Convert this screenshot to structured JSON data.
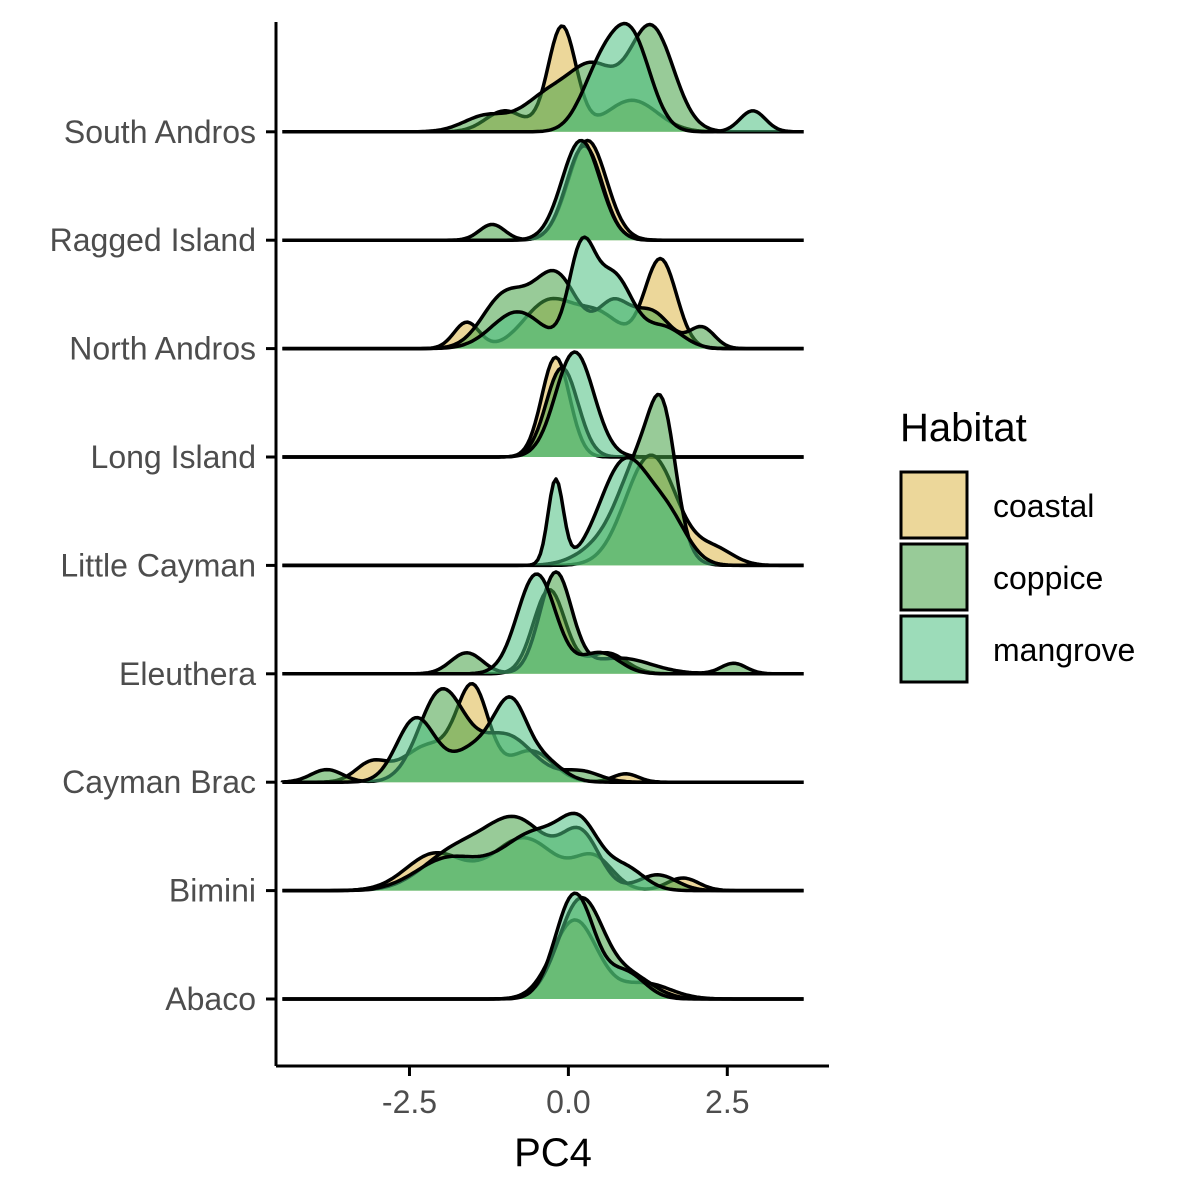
{
  "chart_data": {
    "type": "ridgeline",
    "xlabel": "PC4",
    "ylabel": "",
    "xlim": [
      -4.6,
      4.1
    ],
    "xticks": [
      -2.5,
      0.0,
      2.5
    ],
    "xtick_labels": [
      "-2.5",
      "0.0",
      "2.5"
    ],
    "grid": false,
    "legend": {
      "title": "Habitat",
      "position": "right",
      "entries": [
        "coastal",
        "coppice",
        "mangrove"
      ]
    },
    "colors": {
      "coastal": "#DDB747",
      "coppice": "#43A143",
      "mangrove": "#4BC07F"
    },
    "categories": [
      "Abaco",
      "Bimini",
      "Cayman Brac",
      "Eleuthera",
      "Little Cayman",
      "Long Island",
      "North Andros",
      "Ragged Island",
      "South Andros"
    ],
    "series": [
      {
        "name": "coastal",
        "peaks": {
          "Abaco": [
            [
              0.1,
              0.35,
              0.75
            ],
            [
              1.2,
              0.4,
              0.15
            ]
          ],
          "Bimini": [
            [
              -2.1,
              0.45,
              0.35
            ],
            [
              -0.7,
              0.5,
              0.5
            ],
            [
              0.4,
              0.3,
              0.3
            ],
            [
              1.8,
              0.25,
              0.12
            ]
          ],
          "Cayman Brac": [
            [
              -3.1,
              0.25,
              0.18
            ],
            [
              -1.5,
              0.25,
              0.85
            ],
            [
              -2.2,
              0.4,
              0.35
            ],
            [
              -0.6,
              0.35,
              0.3
            ],
            [
              0.9,
              0.2,
              0.08
            ]
          ],
          "Eleuthera": [
            [
              -0.3,
              0.25,
              0.8
            ],
            [
              0.6,
              0.3,
              0.2
            ]
          ],
          "Little Cayman": [
            [
              1.3,
              0.4,
              1.05
            ],
            [
              2.3,
              0.3,
              0.15
            ]
          ],
          "Long Island": [
            [
              -0.2,
              0.22,
              0.95
            ]
          ],
          "North Andros": [
            [
              -1.6,
              0.2,
              0.25
            ],
            [
              -0.3,
              0.4,
              0.45
            ],
            [
              0.5,
              0.35,
              0.3
            ],
            [
              1.45,
              0.25,
              0.85
            ]
          ],
          "Ragged Island": [
            [
              0.3,
              0.3,
              0.95
            ]
          ],
          "South Andros": [
            [
              -0.1,
              0.22,
              1.0
            ],
            [
              -1.0,
              0.3,
              0.2
            ],
            [
              1.0,
              0.4,
              0.3
            ]
          ]
        }
      },
      {
        "name": "coppice",
        "peaks": {
          "Abaco": [
            [
              0.2,
              0.35,
              0.95
            ],
            [
              1.0,
              0.35,
              0.2
            ]
          ],
          "Bimini": [
            [
              -1.8,
              0.5,
              0.35
            ],
            [
              -0.8,
              0.5,
              0.65
            ],
            [
              0.2,
              0.3,
              0.5
            ],
            [
              1.4,
              0.3,
              0.15
            ]
          ],
          "Cayman Brac": [
            [
              -3.8,
              0.25,
              0.12
            ],
            [
              -2.0,
              0.35,
              0.85
            ],
            [
              -1.0,
              0.45,
              0.45
            ],
            [
              0.2,
              0.3,
              0.1
            ]
          ],
          "Eleuthera": [
            [
              -1.6,
              0.25,
              0.2
            ],
            [
              -0.2,
              0.25,
              0.95
            ],
            [
              0.8,
              0.5,
              0.15
            ],
            [
              2.6,
              0.2,
              0.1
            ]
          ],
          "Little Cayman": [
            [
              0.6,
              0.4,
              0.2
            ],
            [
              1.2,
              0.35,
              1.0
            ],
            [
              1.5,
              0.2,
              0.85
            ]
          ],
          "Long Island": [
            [
              -0.1,
              0.25,
              0.85
            ]
          ],
          "North Andros": [
            [
              -1.0,
              0.35,
              0.5
            ],
            [
              -0.2,
              0.35,
              0.7
            ],
            [
              0.7,
              0.25,
              0.4
            ],
            [
              1.3,
              0.3,
              0.35
            ],
            [
              2.1,
              0.2,
              0.2
            ]
          ],
          "Ragged Island": [
            [
              -1.2,
              0.2,
              0.15
            ],
            [
              0.25,
              0.28,
              0.9
            ]
          ],
          "South Andros": [
            [
              -1.3,
              0.35,
              0.15
            ],
            [
              -0.3,
              0.4,
              0.35
            ],
            [
              0.4,
              0.35,
              0.55
            ],
            [
              1.3,
              0.35,
              1.0
            ]
          ]
        }
      },
      {
        "name": "mangrove",
        "peaks": {
          "Abaco": [
            [
              0.1,
              0.3,
              1.0
            ],
            [
              0.9,
              0.3,
              0.25
            ]
          ],
          "Bimini": [
            [
              -1.9,
              0.5,
              0.3
            ],
            [
              -0.5,
              0.55,
              0.55
            ],
            [
              0.2,
              0.3,
              0.45
            ],
            [
              0.9,
              0.3,
              0.2
            ]
          ],
          "Cayman Brac": [
            [
              -2.4,
              0.3,
              0.6
            ],
            [
              -1.4,
              0.4,
              0.35
            ],
            [
              -0.9,
              0.25,
              0.6
            ],
            [
              -0.4,
              0.3,
              0.2
            ]
          ],
          "Eleuthera": [
            [
              -0.5,
              0.3,
              0.95
            ],
            [
              0.5,
              0.3,
              0.2
            ]
          ],
          "Little Cayman": [
            [
              -0.2,
              0.12,
              0.8
            ],
            [
              0.9,
              0.4,
              1.0
            ],
            [
              1.6,
              0.3,
              0.35
            ]
          ],
          "Long Island": [
            [
              0.1,
              0.3,
              1.0
            ]
          ],
          "North Andros": [
            [
              -0.8,
              0.4,
              0.35
            ],
            [
              0.2,
              0.2,
              0.85
            ],
            [
              0.7,
              0.3,
              0.7
            ],
            [
              1.5,
              0.3,
              0.2
            ]
          ],
          "Ragged Island": [
            [
              0.2,
              0.3,
              0.95
            ]
          ],
          "South Andros": [
            [
              0.5,
              0.3,
              0.55
            ],
            [
              1.0,
              0.3,
              0.85
            ],
            [
              2.9,
              0.2,
              0.2
            ]
          ]
        }
      }
    ]
  }
}
